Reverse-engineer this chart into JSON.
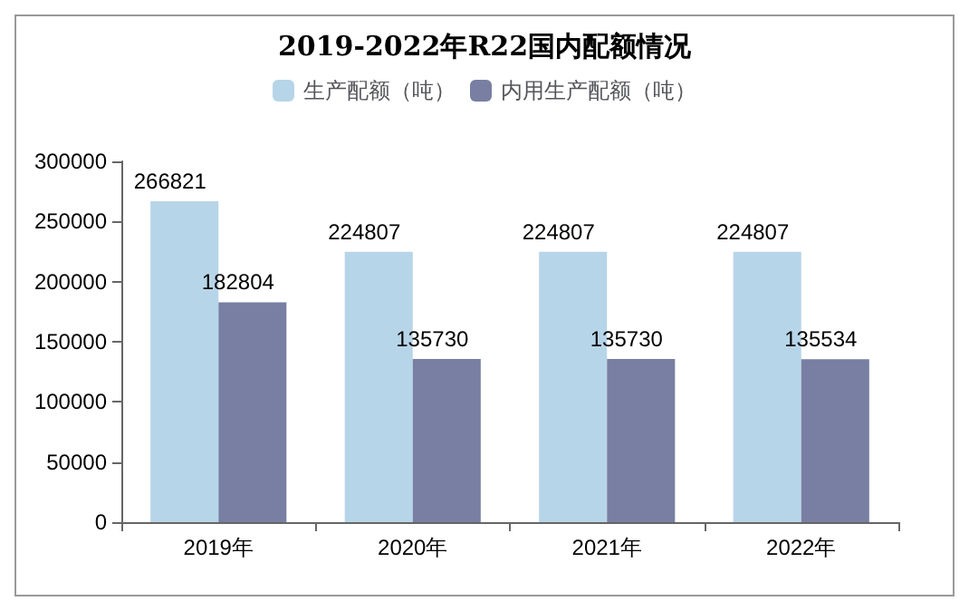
{
  "chart_data": {
    "type": "bar",
    "title": "2019-2022年R22国内配额情况",
    "categories": [
      "2019年",
      "2020年",
      "2021年",
      "2022年"
    ],
    "series": [
      {
        "name": "生产配额（吨）",
        "color": "#b7d5e8",
        "values": [
          266821,
          224807,
          224807,
          224807
        ]
      },
      {
        "name": "内用生产配额（吨）",
        "color": "#787fa3",
        "values": [
          182804,
          135730,
          135730,
          135534
        ]
      }
    ],
    "ylim": [
      0,
      300000
    ],
    "yticks": [
      0,
      50000,
      100000,
      150000,
      200000,
      250000,
      300000
    ],
    "grid": false,
    "legend": "top",
    "data_labels": true
  }
}
